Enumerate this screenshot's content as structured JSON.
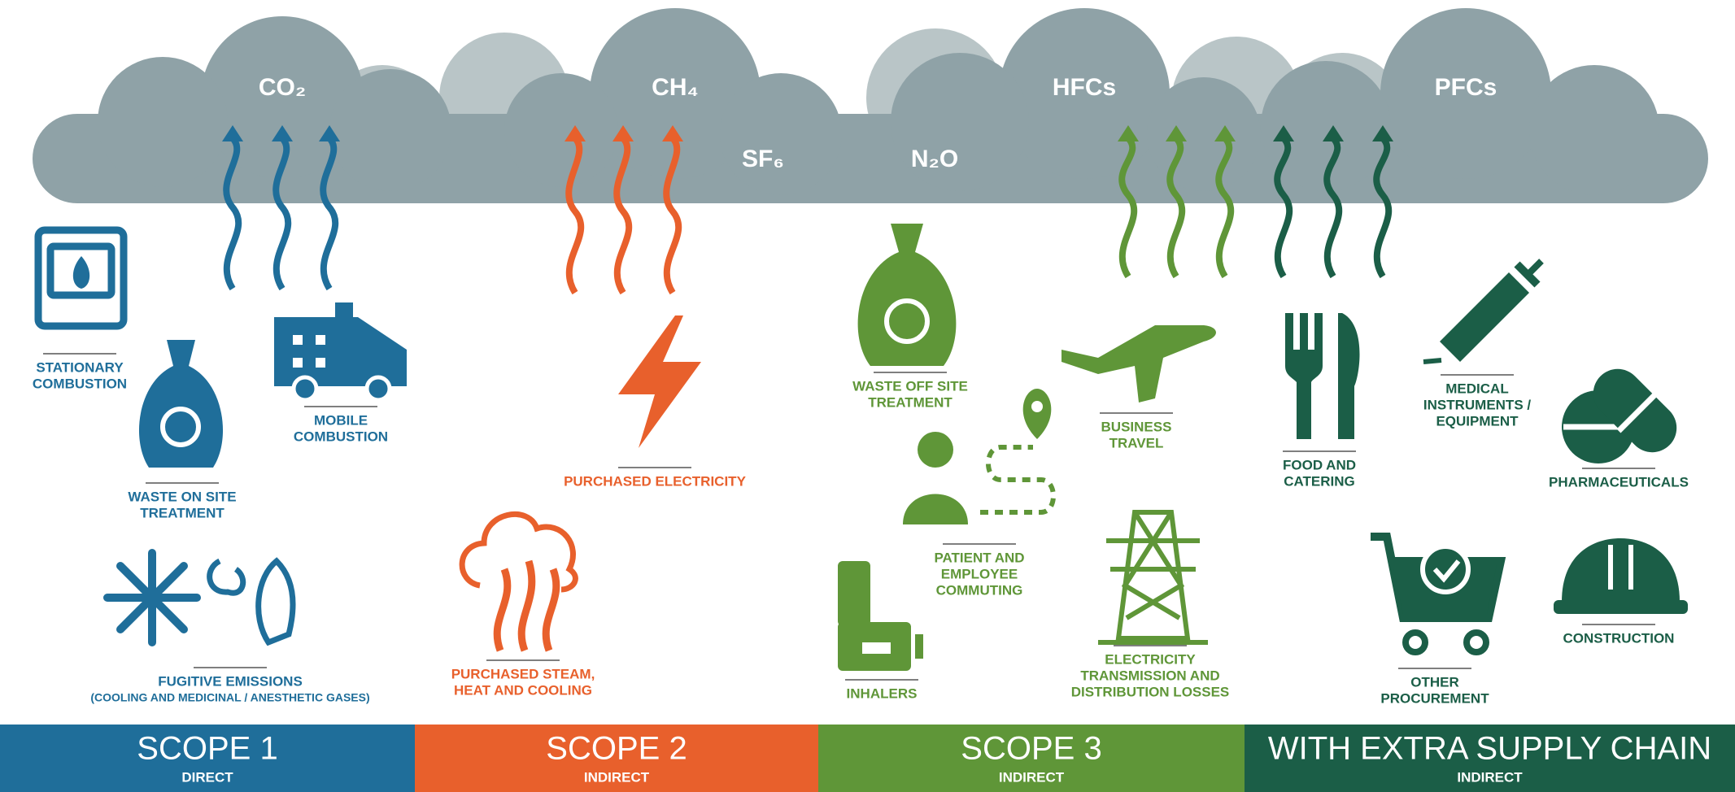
{
  "gases": [
    "CO₂",
    "CH₄",
    "SF₆",
    "N₂O",
    "HFCs",
    "PFCs"
  ],
  "groups": [
    {
      "scope": "SCOPE 1",
      "kind": "DIRECT",
      "items": [
        {
          "lines": [
            "STATIONARY",
            "COMBUSTION"
          ]
        },
        {
          "lines": [
            "WASTE ON SITE",
            "TREATMENT"
          ]
        },
        {
          "lines": [
            "MOBILE",
            "COMBUSTION"
          ]
        },
        {
          "lines": [
            "FUGITIVE EMISSIONS"
          ],
          "note": "(COOLING AND MEDICINAL / ANESTHETIC GASES)"
        }
      ]
    },
    {
      "scope": "SCOPE 2",
      "kind": "INDIRECT",
      "items": [
        {
          "lines": [
            "PURCHASED ELECTRICITY"
          ]
        },
        {
          "lines": [
            "PURCHASED STEAM,",
            "HEAT AND COOLING"
          ]
        }
      ]
    },
    {
      "scope": "SCOPE 3",
      "kind": "INDIRECT",
      "items": [
        {
          "lines": [
            "WASTE OFF SITE",
            "TREATMENT"
          ]
        },
        {
          "lines": [
            "PATIENT AND",
            "EMPLOYEE",
            "COMMUTING"
          ]
        },
        {
          "lines": [
            "BUSINESS",
            "TRAVEL"
          ]
        },
        {
          "lines": [
            "INHALERS"
          ]
        },
        {
          "lines": [
            "ELECTRICITY",
            "TRANSMISSION AND",
            "DISTRIBUTION LOSSES"
          ]
        }
      ]
    },
    {
      "scope": "WITH EXTRA SUPPLY CHAIN",
      "kind": "INDIRECT",
      "items": [
        {
          "lines": [
            "FOOD AND",
            "CATERING"
          ]
        },
        {
          "lines": [
            "MEDICAL",
            "INSTRUMENTS /",
            "EQUIPMENT"
          ]
        },
        {
          "lines": [
            "PHARMACEUTICALS"
          ]
        },
        {
          "lines": [
            "OTHER",
            "PROCUREMENT"
          ]
        },
        {
          "lines": [
            "CONSTRUCTION"
          ]
        }
      ]
    }
  ]
}
